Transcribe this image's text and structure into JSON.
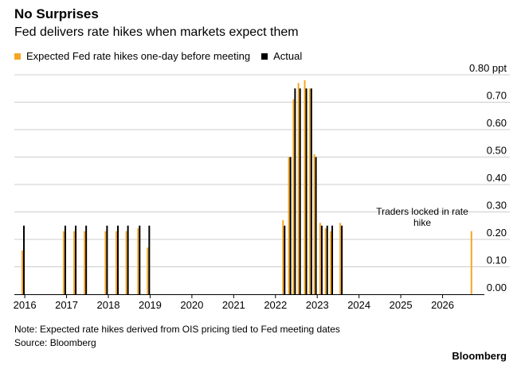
{
  "title": "No Surprises",
  "subtitle": "Fed delivers rate hikes when markets expect them",
  "legend": {
    "expected": "Expected Fed rate hikes one-day before meeting",
    "actual": "Actual"
  },
  "colors": {
    "expected": "#f5a623",
    "actual": "#000000",
    "grid": "#cccccc"
  },
  "annotation": {
    "line1": "Traders locked in rate",
    "line2": "hike"
  },
  "footer": {
    "note": "Note: Expected rate hikes derived from OIS pricing tied to Fed meeting dates",
    "source": "Source: Bloomberg",
    "brand": "Bloomberg"
  },
  "chart_data": {
    "type": "bar",
    "y_unit": "ppt",
    "ylim": [
      0,
      0.8
    ],
    "y_ticks": [
      {
        "value": 0.0,
        "label": "0.00"
      },
      {
        "value": 0.1,
        "label": "0.10"
      },
      {
        "value": 0.2,
        "label": "0.20"
      },
      {
        "value": 0.3,
        "label": "0.30"
      },
      {
        "value": 0.4,
        "label": "0.40"
      },
      {
        "value": 0.5,
        "label": "0.50"
      },
      {
        "value": 0.6,
        "label": "0.60"
      },
      {
        "value": 0.7,
        "label": "0.70"
      },
      {
        "value": 0.8,
        "label": "0.80 ppt"
      }
    ],
    "xlim": [
      2015.75,
      2027.0
    ],
    "x_ticks": [
      {
        "value": 2016,
        "label": "2016"
      },
      {
        "value": 2017,
        "label": "2017"
      },
      {
        "value": 2018,
        "label": "2018"
      },
      {
        "value": 2019,
        "label": "2019"
      },
      {
        "value": 2020,
        "label": "2020"
      },
      {
        "value": 2021,
        "label": "2021"
      },
      {
        "value": 2022,
        "label": "2022"
      },
      {
        "value": 2023,
        "label": "2023"
      },
      {
        "value": 2024,
        "label": "2024"
      },
      {
        "value": 2025,
        "label": "2025"
      },
      {
        "value": 2026,
        "label": "2026"
      }
    ],
    "grid": true,
    "legend_position": "top-left",
    "meetings": [
      {
        "date": "2015-12-16",
        "x": 2015.96,
        "expected": 0.16,
        "actual": 0.25
      },
      {
        "date": "2016-12-14",
        "x": 2016.95,
        "expected": 0.23,
        "actual": 0.25
      },
      {
        "date": "2017-03-15",
        "x": 2017.2,
        "expected": 0.23,
        "actual": 0.25
      },
      {
        "date": "2017-06-14",
        "x": 2017.45,
        "expected": 0.23,
        "actual": 0.25
      },
      {
        "date": "2017-12-13",
        "x": 2017.95,
        "expected": 0.23,
        "actual": 0.25
      },
      {
        "date": "2018-03-21",
        "x": 2018.21,
        "expected": 0.23,
        "actual": 0.25
      },
      {
        "date": "2018-06-13",
        "x": 2018.45,
        "expected": 0.23,
        "actual": 0.25
      },
      {
        "date": "2018-09-26",
        "x": 2018.73,
        "expected": 0.24,
        "actual": 0.25
      },
      {
        "date": "2018-12-19",
        "x": 2018.96,
        "expected": 0.17,
        "actual": 0.25
      },
      {
        "date": "2022-03-16",
        "x": 2022.2,
        "expected": 0.27,
        "actual": 0.25
      },
      {
        "date": "2022-05-04",
        "x": 2022.34,
        "expected": 0.5,
        "actual": 0.5
      },
      {
        "date": "2022-06-15",
        "x": 2022.45,
        "expected": 0.71,
        "actual": 0.75
      },
      {
        "date": "2022-07-27",
        "x": 2022.57,
        "expected": 0.77,
        "actual": 0.75
      },
      {
        "date": "2022-09-21",
        "x": 2022.72,
        "expected": 0.78,
        "actual": 0.75
      },
      {
        "date": "2022-11-02",
        "x": 2022.84,
        "expected": 0.75,
        "actual": 0.75
      },
      {
        "date": "2022-12-14",
        "x": 2022.95,
        "expected": 0.51,
        "actual": 0.5
      },
      {
        "date": "2023-02-01",
        "x": 2023.09,
        "expected": 0.26,
        "actual": 0.25
      },
      {
        "date": "2023-03-22",
        "x": 2023.22,
        "expected": 0.24,
        "actual": 0.25
      },
      {
        "date": "2023-05-03",
        "x": 2023.34,
        "expected": 0.23,
        "actual": 0.25
      },
      {
        "date": "2023-07-26",
        "x": 2023.57,
        "expected": 0.26,
        "actual": 0.25
      },
      {
        "date": "2026-09-16",
        "x": 2026.71,
        "expected": 0.23,
        "actual": null
      }
    ]
  }
}
